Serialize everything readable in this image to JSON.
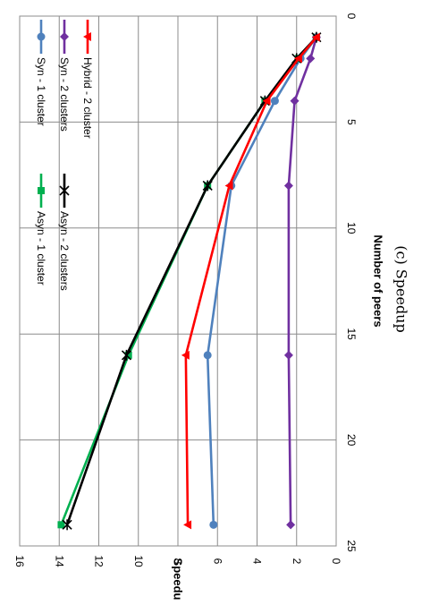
{
  "chart_data": {
    "type": "line",
    "caption": "(c) Speedup",
    "xlabel": "Number of peers",
    "ylabel": "Speedup",
    "xlim": [
      0,
      25
    ],
    "ylim": [
      0,
      16
    ],
    "x_ticks": [
      0,
      5,
      10,
      15,
      20,
      25
    ],
    "y_ticks": [
      0,
      2,
      4,
      6,
      8,
      10,
      12,
      14,
      16
    ],
    "grid": true,
    "orientation": "rotated 90 degrees clockwise",
    "legend_position": "inside plot, near the low-speedup side",
    "series": [
      {
        "name": "Syn - 1 cluster",
        "color": "#4F81BD",
        "marker": "circle",
        "x": [
          1,
          2,
          4,
          8,
          16,
          24
        ],
        "y": [
          1,
          1.8,
          3.1,
          5.3,
          6.5,
          6.2
        ]
      },
      {
        "name": "Asyn - 1 cluster",
        "color": "#00B050",
        "marker": "square",
        "x": [
          1,
          2,
          4,
          8,
          16,
          24
        ],
        "y": [
          1,
          1.9,
          3.6,
          6.5,
          10.5,
          13.9
        ]
      },
      {
        "name": "Syn - 2 clusters",
        "color": "#7030A0",
        "marker": "diamond",
        "x": [
          1,
          2,
          4,
          8,
          16,
          24
        ],
        "y": [
          1,
          1.3,
          2.1,
          2.4,
          2.4,
          2.3
        ]
      },
      {
        "name": "Asyn - 2 clusters",
        "color": "#000000",
        "marker": "star",
        "x": [
          1,
          2,
          4,
          8,
          16,
          24
        ],
        "y": [
          1,
          2.0,
          3.6,
          6.5,
          10.6,
          13.6
        ]
      },
      {
        "name": "Hybrid - 2 cluster",
        "color": "#FF0000",
        "marker": "triangle",
        "x": [
          1,
          2,
          4,
          8,
          16,
          24
        ],
        "y": [
          1,
          1.9,
          3.5,
          5.4,
          7.6,
          7.5
        ]
      }
    ]
  }
}
